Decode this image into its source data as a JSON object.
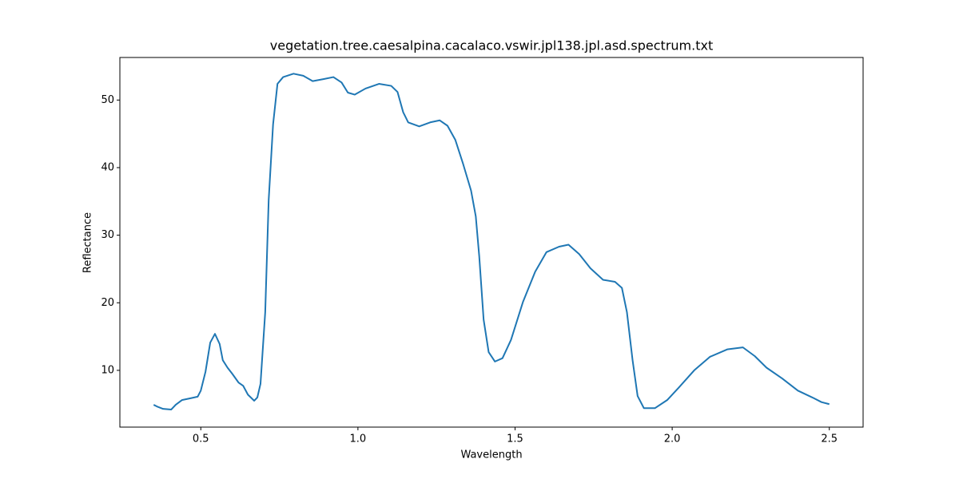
{
  "chart_data": {
    "type": "line",
    "title": "vegetation.tree.caesalpina.cacalaco.vswir.jpl138.jpl.asd.spectrum.txt",
    "xlabel": "Wavelength",
    "ylabel": "Reflectance",
    "x": [
      0.35,
      0.363,
      0.38,
      0.406,
      0.42,
      0.44,
      0.47,
      0.49,
      0.5,
      0.515,
      0.53,
      0.545,
      0.56,
      0.57,
      0.585,
      0.6,
      0.62,
      0.635,
      0.65,
      0.67,
      0.68,
      0.69,
      0.705,
      0.716,
      0.73,
      0.744,
      0.762,
      0.795,
      0.826,
      0.856,
      0.89,
      0.922,
      0.948,
      0.968,
      0.99,
      1.024,
      1.067,
      1.106,
      1.126,
      1.144,
      1.16,
      1.195,
      1.23,
      1.26,
      1.285,
      1.31,
      1.335,
      1.36,
      1.375,
      1.386,
      1.4,
      1.416,
      1.436,
      1.46,
      1.487,
      1.525,
      1.564,
      1.6,
      1.64,
      1.67,
      1.704,
      1.74,
      1.78,
      1.818,
      1.84,
      1.856,
      1.874,
      1.89,
      1.91,
      1.945,
      1.984,
      2.02,
      2.07,
      2.12,
      2.175,
      2.225,
      2.263,
      2.3,
      2.35,
      2.4,
      2.45,
      2.475,
      2.5
    ],
    "series": [
      {
        "name": "Reflectance",
        "color": "#1f77b4",
        "values": [
          4.9,
          4.6,
          4.3,
          4.2,
          4.9,
          5.6,
          5.9,
          6.1,
          7.0,
          9.8,
          14.1,
          15.4,
          13.9,
          11.5,
          10.4,
          9.5,
          8.2,
          7.7,
          6.4,
          5.5,
          6.0,
          8.0,
          18.6,
          35.2,
          46.4,
          52.4,
          53.4,
          53.9,
          53.6,
          52.8,
          53.1,
          53.4,
          52.6,
          51.1,
          50.8,
          51.7,
          52.4,
          52.1,
          51.2,
          48.2,
          46.7,
          46.1,
          46.7,
          47.0,
          46.2,
          44.1,
          40.5,
          36.6,
          32.8,
          26.9,
          17.5,
          12.7,
          11.3,
          11.8,
          14.5,
          20.1,
          24.6,
          27.5,
          28.3,
          28.6,
          27.2,
          25.1,
          23.4,
          23.1,
          22.2,
          18.6,
          11.5,
          6.2,
          4.4,
          4.4,
          5.6,
          7.4,
          10.0,
          12.0,
          13.1,
          13.4,
          12.1,
          10.4,
          8.8,
          7.0,
          5.9,
          5.3,
          5.0
        ]
      }
    ],
    "xlim": [
      0.2425,
      2.6075
    ],
    "ylim": [
      1.6,
      56.3
    ],
    "xticks": [
      0.5,
      {
        "value": 1,
        "label": "1.0"
      },
      1.5,
      {
        "value": 2,
        "label": "2.0"
      },
      2.5
    ],
    "yticks": [
      10,
      20,
      30,
      40,
      50
    ]
  }
}
